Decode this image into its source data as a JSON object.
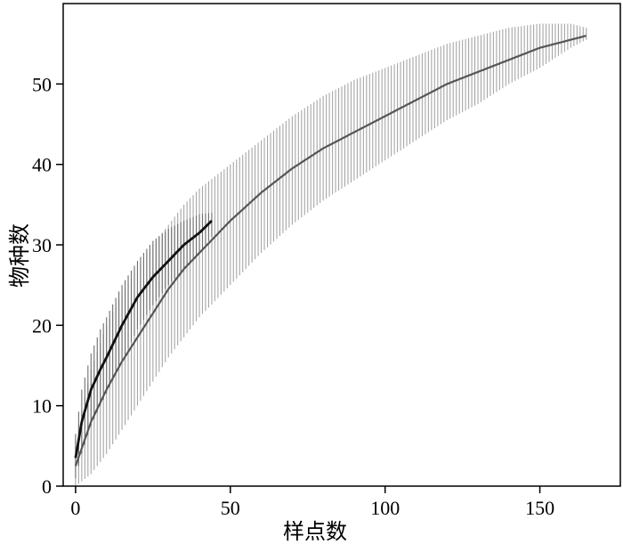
{
  "chart_data": {
    "type": "line",
    "title": "",
    "xlabel": "样点数",
    "ylabel": "物种数",
    "xlim": [
      -4,
      176
    ],
    "ylim": [
      0,
      60
    ],
    "xticks": [
      0,
      50,
      100,
      150
    ],
    "yticks": [
      0,
      10,
      20,
      30,
      40,
      50
    ],
    "grid": false,
    "legend": "none",
    "series": [
      {
        "color": "#555555",
        "band_color": "#a6a6a6",
        "x": [
          0,
          5,
          10,
          15,
          20,
          25,
          30,
          35,
          40,
          45,
          50,
          60,
          70,
          80,
          90,
          100,
          110,
          120,
          130,
          140,
          150,
          160,
          165
        ],
        "y": [
          2.5,
          8,
          12,
          15.5,
          18.5,
          21.5,
          24.5,
          27,
          29,
          31,
          33,
          36.5,
          39.5,
          42,
          44,
          46,
          48,
          50,
          51.5,
          53,
          54.5,
          55.5,
          56
        ],
        "lower": [
          0,
          1.5,
          4,
          7,
          10,
          13,
          16,
          18.5,
          21,
          23,
          25,
          29,
          32.5,
          35.5,
          38,
          40.5,
          43,
          45.5,
          47.5,
          50,
          52,
          54.5,
          55.5
        ],
        "upper": [
          6,
          14.5,
          20,
          24,
          27,
          30,
          32.5,
          35,
          37,
          38.5,
          40,
          43,
          46,
          48.5,
          50.5,
          52,
          53.5,
          55,
          56,
          57,
          57.5,
          57.5,
          57
        ]
      },
      {
        "color": "#111111",
        "band_color": "#6e6e6e",
        "x": [
          0,
          2,
          5,
          8,
          10,
          15,
          20,
          25,
          30,
          35,
          40,
          44
        ],
        "y": [
          3.5,
          8,
          12,
          14.5,
          16,
          20,
          23.5,
          26,
          28,
          30,
          31.5,
          33
        ],
        "lower": [
          1,
          4,
          7.5,
          10,
          11.5,
          15.5,
          19.5,
          22.5,
          25,
          27,
          29,
          31
        ],
        "upper": [
          6.5,
          12,
          16.5,
          19.5,
          21,
          25,
          28,
          30.5,
          32,
          33,
          33.8,
          34
        ]
      }
    ]
  }
}
